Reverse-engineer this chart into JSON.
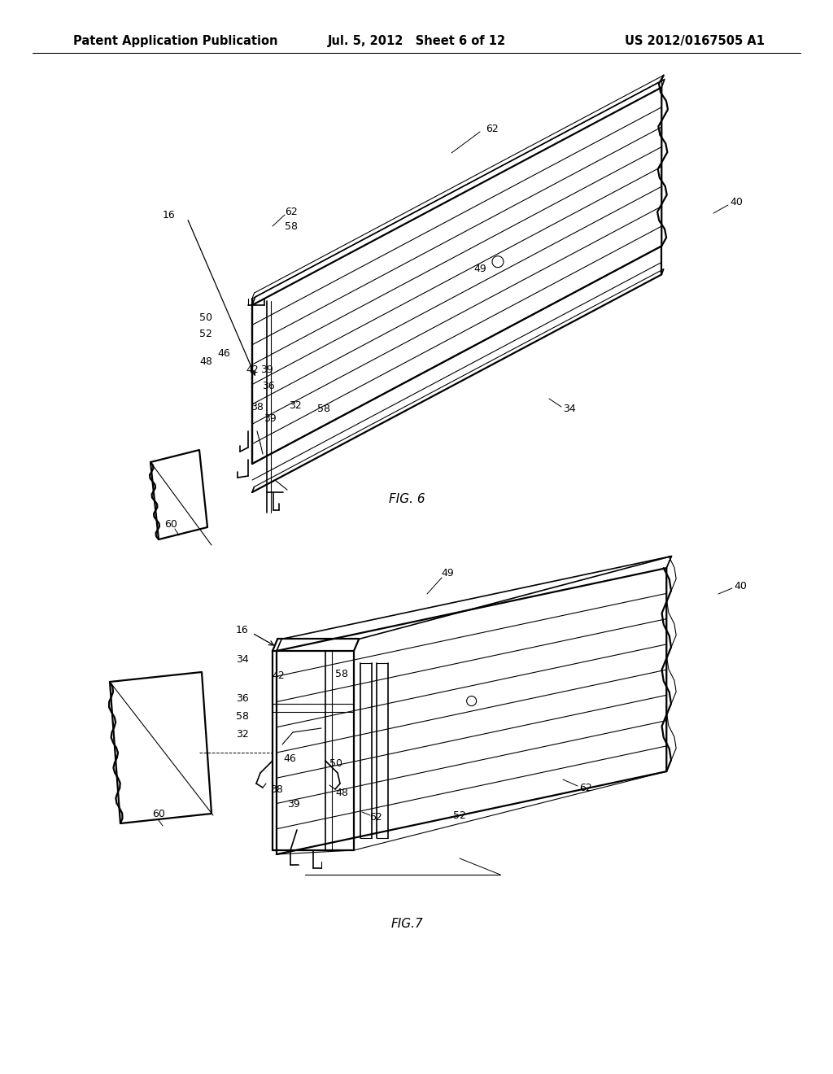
{
  "background_color": "#ffffff",
  "line_color": "#000000",
  "header": {
    "left": "Patent Application Publication",
    "center": "Jul. 5, 2012   Sheet 6 of 12",
    "right": "US 2012/0167505 A1",
    "fontsize": 10.5
  },
  "fig6_label": "FIG. 6",
  "fig7_label": "FIG.7"
}
